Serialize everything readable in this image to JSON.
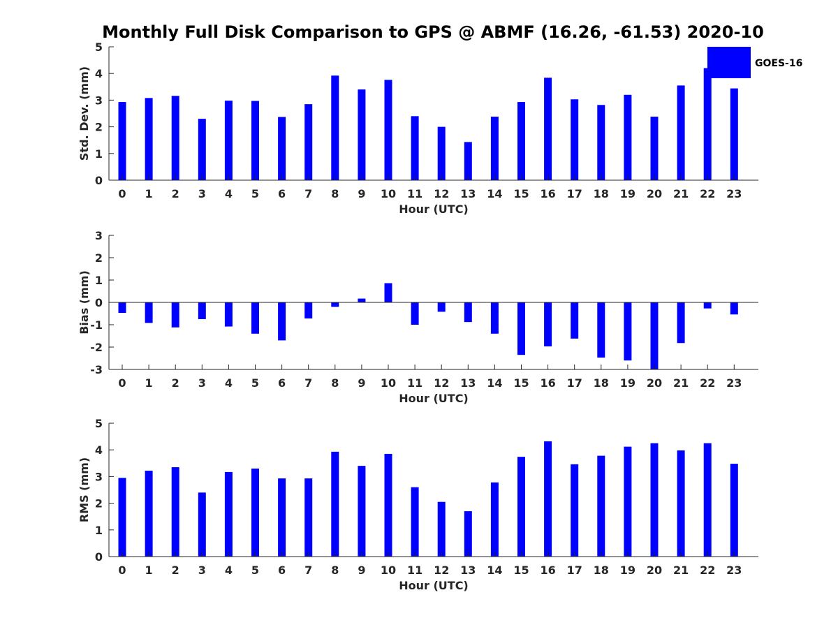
{
  "title": "Monthly Full Disk Comparison to GPS @ ABMF (16.26, -61.53) 2020-10",
  "colors": {
    "bar": "#0000ff",
    "axis": "#262626",
    "background": "#ffffff"
  },
  "legend": {
    "label": "GOES-16",
    "placement": "top-right"
  },
  "chart_data": [
    {
      "type": "bar",
      "title": "Monthly Full Disk Comparison to GPS @ ABMF (16.26, -61.53) 2020-10",
      "xlabel": "Hour (UTC)",
      "ylabel": "Std. Dev. (mm)",
      "ylim": [
        0,
        5
      ],
      "yticks": [
        0,
        1,
        2,
        3,
        4,
        5
      ],
      "categories": [
        "0",
        "1",
        "2",
        "3",
        "4",
        "5",
        "6",
        "7",
        "8",
        "9",
        "10",
        "11",
        "12",
        "13",
        "14",
        "15",
        "16",
        "17",
        "18",
        "19",
        "20",
        "21",
        "22",
        "23"
      ],
      "series": [
        {
          "name": "GOES-16",
          "values": [
            2.93,
            3.08,
            3.16,
            2.3,
            2.98,
            2.97,
            2.37,
            2.85,
            3.92,
            3.4,
            3.76,
            2.4,
            2.0,
            1.43,
            2.38,
            2.93,
            3.84,
            3.03,
            2.82,
            3.2,
            2.38,
            3.55,
            4.2,
            3.44
          ]
        }
      ],
      "grid": false
    },
    {
      "type": "bar",
      "xlabel": "Hour (UTC)",
      "ylabel": "Bias (mm)",
      "ylim": [
        -3,
        3
      ],
      "yticks": [
        -3,
        -2,
        -1,
        0,
        1,
        2,
        3
      ],
      "categories": [
        "0",
        "1",
        "2",
        "3",
        "4",
        "5",
        "6",
        "7",
        "8",
        "9",
        "10",
        "11",
        "12",
        "13",
        "14",
        "15",
        "16",
        "17",
        "18",
        "19",
        "20",
        "21",
        "22",
        "23"
      ],
      "series": [
        {
          "name": "GOES-16",
          "values": [
            -0.47,
            -0.92,
            -1.12,
            -0.75,
            -1.08,
            -1.4,
            -1.7,
            -0.72,
            -0.2,
            0.17,
            0.86,
            -1.0,
            -0.42,
            -0.88,
            -1.4,
            -2.35,
            -1.97,
            -1.62,
            -2.47,
            -2.6,
            -3.0,
            -1.82,
            -0.27,
            -0.54
          ]
        }
      ],
      "grid": false
    },
    {
      "type": "bar",
      "xlabel": "Hour (UTC)",
      "ylabel": "RMS (mm)",
      "ylim": [
        0,
        5
      ],
      "yticks": [
        0,
        1,
        2,
        3,
        4,
        5
      ],
      "categories": [
        "0",
        "1",
        "2",
        "3",
        "4",
        "5",
        "6",
        "7",
        "8",
        "9",
        "10",
        "11",
        "12",
        "13",
        "14",
        "15",
        "16",
        "17",
        "18",
        "19",
        "20",
        "21",
        "22",
        "23"
      ],
      "series": [
        {
          "name": "GOES-16",
          "values": [
            2.95,
            3.22,
            3.35,
            2.4,
            3.17,
            3.3,
            2.93,
            2.93,
            3.93,
            3.4,
            3.85,
            2.6,
            2.05,
            1.7,
            2.78,
            3.74,
            4.32,
            3.46,
            3.78,
            4.12,
            4.25,
            3.98,
            4.25,
            3.48
          ]
        }
      ],
      "grid": false
    }
  ]
}
